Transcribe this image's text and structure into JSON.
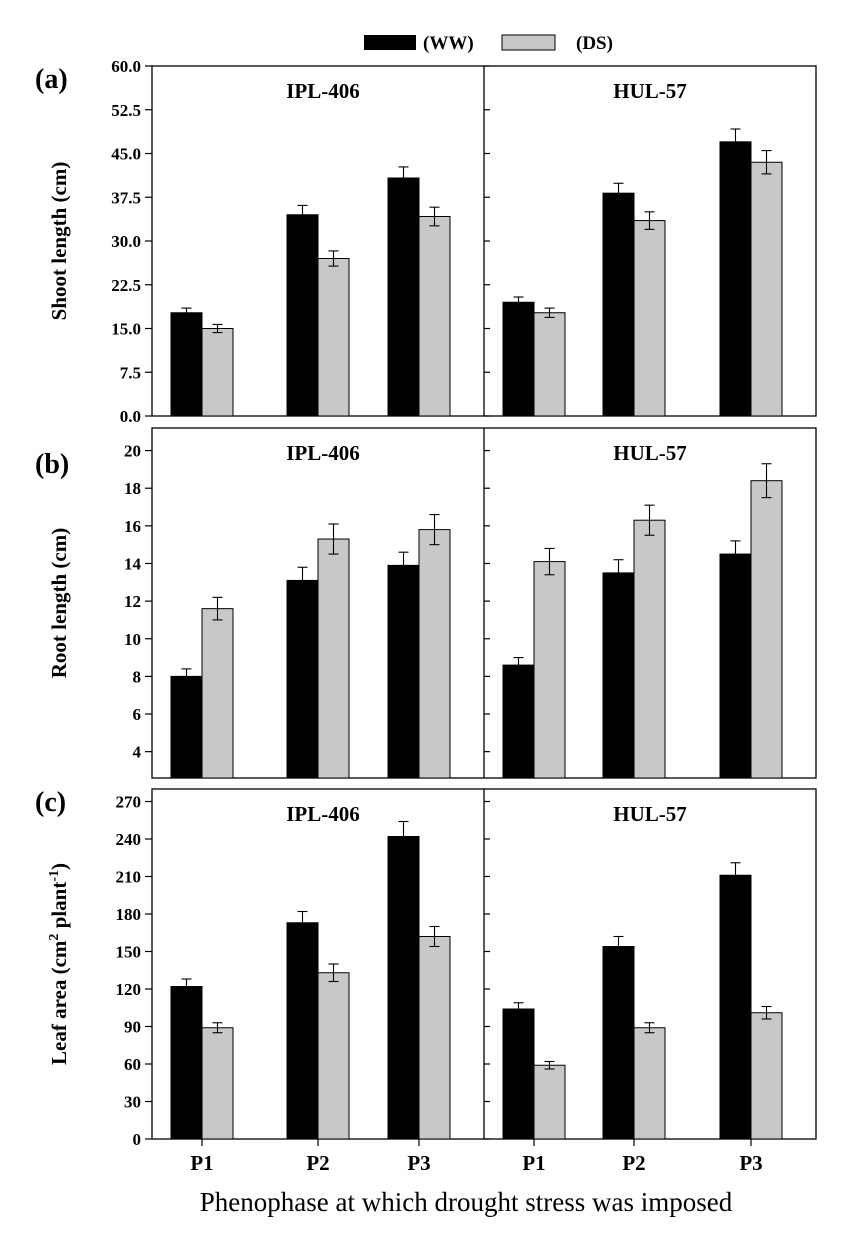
{
  "legend": [
    {
      "label": "(WW)",
      "color": "#000000"
    },
    {
      "label": "(DS)",
      "color": "#c8c8c8"
    }
  ],
  "xlabel": "Phenophase at which drought stress was imposed",
  "chart_data": [
    {
      "type": "bar",
      "panel": "(a)",
      "ylabel": "Shoot length (cm)",
      "ylim": [
        0,
        60
      ],
      "yticks": [
        "0.0",
        "7.5",
        "15.0",
        "22.5",
        "30.0",
        "37.5",
        "45.0",
        "52.5",
        "60.0"
      ],
      "groups": [
        {
          "title": "IPL-406",
          "categories": [
            "P1",
            "P2",
            "P3"
          ],
          "series": [
            {
              "name": "(WW)",
              "values": [
                17.7,
                34.5,
                40.8
              ],
              "errors": [
                0.8,
                1.6,
                1.9
              ]
            },
            {
              "name": "(DS)",
              "values": [
                15.0,
                27.0,
                34.2
              ],
              "errors": [
                0.7,
                1.3,
                1.6
              ]
            }
          ]
        },
        {
          "title": "HUL-57",
          "categories": [
            "P1",
            "P2",
            "P3"
          ],
          "series": [
            {
              "name": "(WW)",
              "values": [
                19.5,
                38.2,
                47.0
              ],
              "errors": [
                0.9,
                1.7,
                2.2
              ]
            },
            {
              "name": "(DS)",
              "values": [
                17.7,
                33.5,
                43.5
              ],
              "errors": [
                0.8,
                1.5,
                2.0
              ]
            }
          ]
        }
      ]
    },
    {
      "type": "bar",
      "panel": "(b)",
      "ylabel": "Root length (cm)",
      "ylim": [
        2.6,
        21.2
      ],
      "yticks": [
        "4",
        "6",
        "8",
        "10",
        "12",
        "14",
        "16",
        "18",
        "20"
      ],
      "groups": [
        {
          "title": "IPL-406",
          "categories": [
            "P1",
            "P2",
            "P3"
          ],
          "series": [
            {
              "name": "(WW)",
              "values": [
                8.0,
                13.1,
                13.9
              ],
              "errors": [
                0.4,
                0.7,
                0.7
              ]
            },
            {
              "name": "(DS)",
              "values": [
                11.6,
                15.3,
                15.8
              ],
              "errors": [
                0.6,
                0.8,
                0.8
              ]
            }
          ]
        },
        {
          "title": "HUL-57",
          "categories": [
            "P1",
            "P2",
            "P3"
          ],
          "series": [
            {
              "name": "(WW)",
              "values": [
                8.6,
                13.5,
                14.5
              ],
              "errors": [
                0.4,
                0.7,
                0.7
              ]
            },
            {
              "name": "(DS)",
              "values": [
                14.1,
                16.3,
                18.4
              ],
              "errors": [
                0.7,
                0.8,
                0.9
              ]
            }
          ]
        }
      ]
    },
    {
      "type": "bar",
      "panel": "(c)",
      "ylabel_main": "Leaf area (cm",
      "ylabel_sup1": "2",
      "ylabel_mid": " plant",
      "ylabel_sup2": "-1",
      "ylabel_end": ")",
      "ylim": [
        0,
        280
      ],
      "yticks": [
        "0",
        "30",
        "60",
        "90",
        "120",
        "150",
        "180",
        "210",
        "240",
        "270"
      ],
      "groups": [
        {
          "title": "IPL-406",
          "categories": [
            "P1",
            "P2",
            "P3"
          ],
          "series": [
            {
              "name": "(WW)",
              "values": [
                122,
                173,
                242
              ],
              "errors": [
                6,
                9,
                12
              ]
            },
            {
              "name": "(DS)",
              "values": [
                89,
                133,
                162
              ],
              "errors": [
                4,
                7,
                8
              ]
            }
          ]
        },
        {
          "title": "HUL-57",
          "categories": [
            "P1",
            "P2",
            "P3"
          ],
          "series": [
            {
              "name": "(WW)",
              "values": [
                104,
                154,
                211
              ],
              "errors": [
                5,
                8,
                10
              ]
            },
            {
              "name": "(DS)",
              "values": [
                59,
                89,
                101
              ],
              "errors": [
                3,
                4,
                5
              ]
            }
          ]
        }
      ]
    }
  ]
}
